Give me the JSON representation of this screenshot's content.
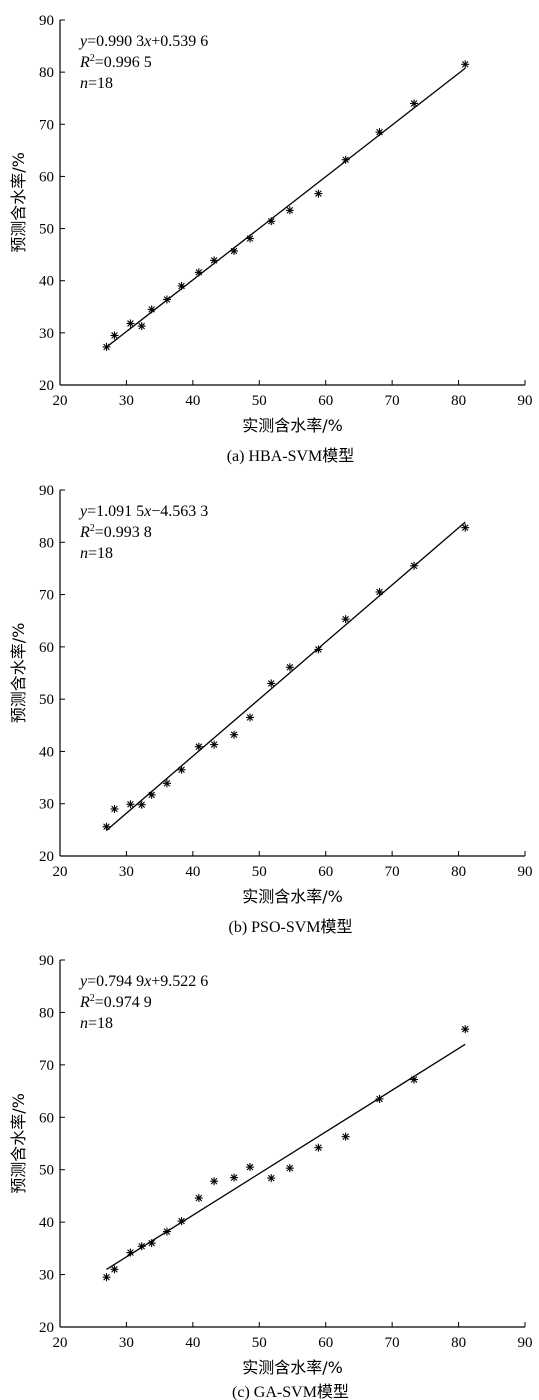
{
  "chart_data": [
    {
      "type": "scatter",
      "caption": "(a)  HBA-SVM模型",
      "xlabel": "实测含水率/%",
      "ylabel": "预测含水率/%",
      "xlim": [
        20,
        90
      ],
      "ylim": [
        20,
        90
      ],
      "xticks": [
        20,
        30,
        40,
        50,
        60,
        70,
        80,
        90
      ],
      "yticks": [
        20,
        30,
        40,
        50,
        60,
        70,
        80,
        90
      ],
      "annotation": {
        "eq_y": "y",
        "eq_rest1": "=0.990 3",
        "eq_x": "x",
        "eq_rest2": "+0.539 6",
        "r2_R": "R",
        "r2_sup": "2",
        "r2_val": "=0.996 5",
        "n_n": "n",
        "n_val": "=18"
      },
      "fit": {
        "slope": 0.9903,
        "intercept": 0.5396,
        "x_range": [
          27,
          81
        ]
      },
      "points": {
        "x": [
          27.0,
          28.2,
          30.6,
          32.3,
          33.8,
          36.1,
          38.3,
          40.9,
          43.2,
          46.2,
          48.6,
          51.8,
          54.6,
          58.9,
          63.0,
          68.1,
          73.3,
          81.0
        ],
        "y": [
          27.3,
          29.5,
          31.8,
          31.3,
          34.5,
          36.4,
          39.0,
          41.6,
          43.9,
          45.7,
          48.1,
          51.4,
          53.5,
          56.7,
          63.2,
          68.5,
          74.0,
          81.5
        ]
      }
    },
    {
      "type": "scatter",
      "caption": "(b)  PSO-SVM模型",
      "xlabel": "实测含水率/%",
      "ylabel": "预测含水率/%",
      "xlim": [
        20,
        90
      ],
      "ylim": [
        20,
        90
      ],
      "xticks": [
        20,
        30,
        40,
        50,
        60,
        70,
        80,
        90
      ],
      "yticks": [
        20,
        30,
        40,
        50,
        60,
        70,
        80,
        90
      ],
      "annotation": {
        "eq_y": "y",
        "eq_rest1": "=1.091 5",
        "eq_x": "x",
        "eq_rest2": "−4.563 3",
        "r2_R": "R",
        "r2_sup": "2",
        "r2_val": "=0.993 8",
        "n_n": "n",
        "n_val": "=18"
      },
      "fit": {
        "slope": 1.0915,
        "intercept": -4.5633,
        "x_range": [
          27,
          81
        ]
      },
      "points": {
        "x": [
          27.0,
          28.2,
          30.6,
          32.3,
          33.8,
          36.1,
          38.3,
          40.9,
          43.2,
          46.2,
          48.6,
          51.8,
          54.6,
          58.9,
          63.0,
          68.1,
          73.3,
          81.0
        ],
        "y": [
          25.6,
          29.0,
          29.9,
          29.8,
          31.7,
          33.9,
          36.5,
          40.9,
          41.3,
          43.2,
          46.5,
          53.0,
          56.1,
          59.5,
          65.3,
          70.5,
          75.5,
          82.8
        ]
      }
    },
    {
      "type": "scatter",
      "caption": "(c)  GA-SVM模型",
      "xlabel": "实测含水率/%",
      "ylabel": "预测含水率/%",
      "xlim": [
        20,
        90
      ],
      "ylim": [
        20,
        90
      ],
      "xticks": [
        20,
        30,
        40,
        50,
        60,
        70,
        80,
        90
      ],
      "yticks": [
        20,
        30,
        40,
        50,
        60,
        70,
        80,
        90
      ],
      "annotation": {
        "eq_y": "y",
        "eq_rest1": "=0.794 9",
        "eq_x": "x",
        "eq_rest2": "+9.522 6",
        "r2_R": "R",
        "r2_sup": "2",
        "r2_val": "=0.974 9",
        "n_n": "n",
        "n_val": "=18"
      },
      "fit": {
        "slope": 0.7949,
        "intercept": 9.5226,
        "x_range": [
          27,
          81
        ]
      },
      "points": {
        "x": [
          27.0,
          28.2,
          30.6,
          32.3,
          33.8,
          36.1,
          38.3,
          40.9,
          43.2,
          46.2,
          48.6,
          51.8,
          54.6,
          58.9,
          63.0,
          68.1,
          73.3,
          81.0
        ],
        "y": [
          29.5,
          31.0,
          34.2,
          35.4,
          36.0,
          38.2,
          40.2,
          44.6,
          47.8,
          48.5,
          50.5,
          48.4,
          50.3,
          54.2,
          56.3,
          63.5,
          67.2,
          76.8
        ]
      }
    }
  ]
}
